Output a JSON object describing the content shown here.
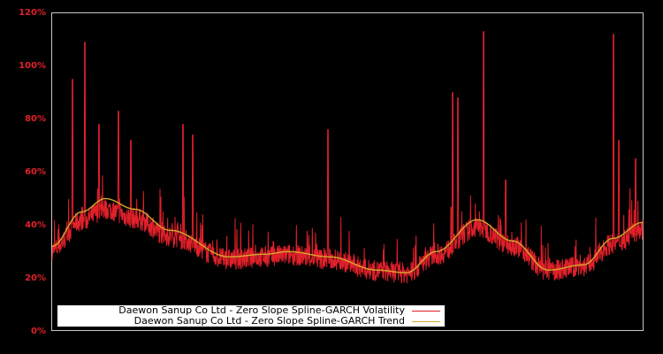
{
  "chart_data": {
    "type": "line",
    "title": "",
    "xlabel": "",
    "ylabel": "",
    "ylim": [
      0,
      120
    ],
    "y_ticks": [
      "0%",
      "20%",
      "40%",
      "60%",
      "80%",
      "100%",
      "120%"
    ],
    "y_tick_values": [
      0,
      20,
      40,
      60,
      80,
      100,
      120
    ],
    "grid": false,
    "legend_position": "lower-left",
    "background": "#000000",
    "series": [
      {
        "name": "Daewon Sanup Co Ltd - Zero Slope Spline-GARCH Volatility",
        "color": "#e0202a",
        "note": "daily volatility, noisy with spikes",
        "spikes_pct": [
          95,
          109,
          78,
          83,
          72,
          78,
          74,
          76,
          90,
          88,
          113,
          57,
          112,
          72,
          65
        ]
      },
      {
        "name": "Daewon Sanup Co Ltd - Zero Slope Spline-GARCH Trend",
        "color": "#d4a82a",
        "x_frac": [
          0.0,
          0.05,
          0.09,
          0.14,
          0.2,
          0.3,
          0.36,
          0.4,
          0.47,
          0.55,
          0.6,
          0.65,
          0.72,
          0.78,
          0.84,
          0.9,
          0.95,
          1.0
        ],
        "values": [
          32,
          45,
          50,
          46,
          38,
          28,
          29,
          30,
          28,
          23,
          22,
          30,
          42,
          34,
          23,
          25,
          35,
          41
        ]
      }
    ]
  },
  "legend": {
    "items": [
      {
        "label": "Daewon Sanup Co Ltd - Zero Slope Spline-GARCH Volatility",
        "color": "#e0202a"
      },
      {
        "label": "Daewon Sanup Co Ltd - Zero Slope Spline-GARCH Trend",
        "color": "#d4a82a"
      }
    ]
  }
}
